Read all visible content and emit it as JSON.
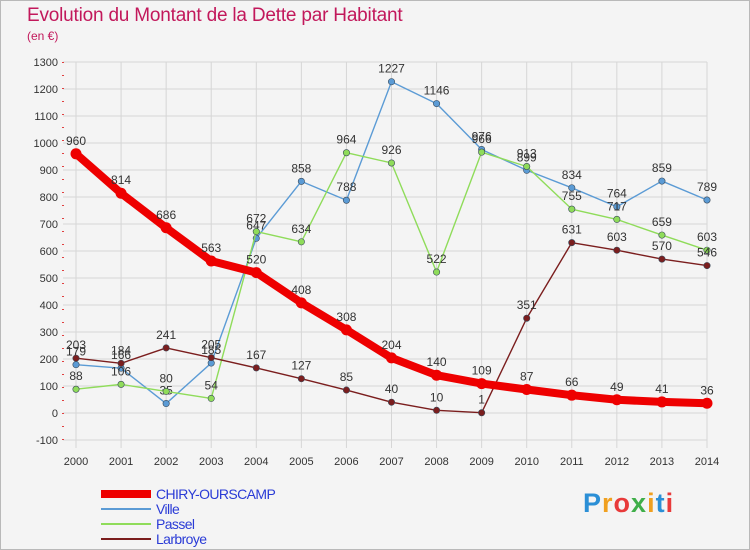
{
  "title": "Evolution du Montant de la Dette par Habitant",
  "unit": "(en €)",
  "logo": {
    "text": "Proxiti",
    "colors": [
      "#2b8fd6",
      "#f0a020",
      "#e83a3a",
      "#3fae49",
      "#f0a020",
      "#2b8fd6",
      "#e83a3a"
    ]
  },
  "chart_data": {
    "type": "line",
    "x": [
      "2000",
      "2001",
      "2002",
      "2003",
      "2004",
      "2005",
      "2006",
      "2007",
      "2008",
      "2009",
      "2010",
      "2011",
      "2012",
      "2013",
      "2014"
    ],
    "ylim": [
      -100,
      1300
    ],
    "yticks": [
      -100,
      0,
      100,
      200,
      300,
      400,
      500,
      600,
      700,
      800,
      900,
      1000,
      1100,
      1200,
      1300
    ],
    "grid": true,
    "legend_position": "bottom-left",
    "series": [
      {
        "name": "CHIRY-OURSCAMP",
        "color": "#ee0000",
        "values": [
          960,
          814,
          686,
          563,
          520,
          408,
          308,
          204,
          140,
          109,
          87,
          66,
          49,
          41,
          36
        ]
      },
      {
        "name": "Ville",
        "color": "#5b9bd5",
        "values": [
          179,
          166,
          35,
          185,
          647,
          858,
          788,
          1227,
          1146,
          976,
          899,
          834,
          764,
          859,
          789
        ]
      },
      {
        "name": "Passel",
        "color": "#8fdc5a",
        "values": [
          88,
          106,
          80,
          54,
          672,
          634,
          964,
          926,
          522,
          966,
          913,
          755,
          717,
          659,
          603
        ]
      },
      {
        "name": "Larbroye",
        "color": "#7b1e1e",
        "values": [
          203,
          184,
          241,
          205,
          167,
          127,
          85,
          40,
          10,
          1,
          351,
          631,
          603,
          570,
          546
        ]
      }
    ]
  }
}
